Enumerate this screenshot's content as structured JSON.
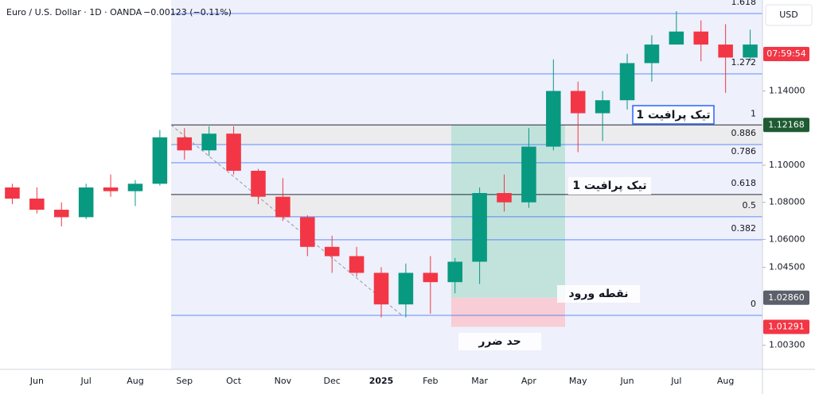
{
  "chart_data": {
    "type": "candlestick",
    "title": "Euro / U.S. Dollar · 1D · OANDA",
    "change": "−0.00123 (−0.11%)",
    "currency": "USD",
    "categories": [
      null,
      "Jun",
      null,
      "Jul",
      null,
      "Aug",
      null,
      "Sep",
      null,
      "Oct",
      null,
      "Nov",
      null,
      "Dec",
      null,
      "2025",
      null,
      "Feb",
      null,
      "Mar",
      null,
      "Apr",
      null,
      "May",
      null,
      "Jun",
      null,
      "Jul",
      null,
      "Aug",
      null
    ],
    "open": [
      1.088,
      1.082,
      1.076,
      1.072,
      1.088,
      1.086,
      1.09,
      1.115,
      1.108,
      1.117,
      1.097,
      1.083,
      1.072,
      1.056,
      1.051,
      1.042,
      1.025,
      1.042,
      1.037,
      1.048,
      1.085,
      1.08,
      1.11,
      1.14,
      1.128,
      1.135,
      1.155,
      1.165,
      1.172,
      1.165,
      1.158
    ],
    "high": [
      1.09,
      1.088,
      1.08,
      1.09,
      1.095,
      1.092,
      1.119,
      1.12,
      1.121,
      1.121,
      1.098,
      1.093,
      1.073,
      1.062,
      1.056,
      1.045,
      1.047,
      1.051,
      1.05,
      1.088,
      1.095,
      1.12,
      1.157,
      1.145,
      1.14,
      1.16,
      1.17,
      1.183,
      1.178,
      1.176,
      1.173
    ],
    "low": [
      1.079,
      1.074,
      1.067,
      1.071,
      1.083,
      1.078,
      1.089,
      1.103,
      1.105,
      1.095,
      1.079,
      1.07,
      1.051,
      1.042,
      1.04,
      1.018,
      1.018,
      1.02,
      1.031,
      1.036,
      1.075,
      1.077,
      1.108,
      1.107,
      1.113,
      1.13,
      1.145,
      1.165,
      1.156,
      1.139,
      1.156
    ],
    "close": [
      1.082,
      1.076,
      1.072,
      1.088,
      1.086,
      1.09,
      1.115,
      1.108,
      1.117,
      1.097,
      1.083,
      1.072,
      1.056,
      1.051,
      1.042,
      1.025,
      1.042,
      1.037,
      1.048,
      1.085,
      1.08,
      1.11,
      1.14,
      1.128,
      1.135,
      1.155,
      1.165,
      1.172,
      1.165,
      1.158,
      1.165
    ],
    "up_color": "#089981",
    "down_color": "#f23645",
    "ylim": [
      0.99,
      1.189
    ],
    "yticks": [
      {
        "value": 1.14,
        "label": "1.14000"
      },
      {
        "value": 1.1,
        "label": "1.10000"
      },
      {
        "value": 1.08,
        "label": "1.08000"
      },
      {
        "value": 1.06,
        "label": "1.06000"
      },
      {
        "value": 1.045,
        "label": "1.04500"
      },
      {
        "value": 1.003,
        "label": "1.00300"
      }
    ],
    "fib_levels": [
      {
        "level": 1.618,
        "price": 1.1817,
        "color": "#2962ff"
      },
      {
        "level": 1.272,
        "price": 1.1492,
        "color": "#2962ff"
      },
      {
        "level": 1,
        "price": 1.1217,
        "color": "#131722"
      },
      {
        "level": 0.886,
        "price": 1.1111,
        "color": "#2962ff"
      },
      {
        "level": 0.786,
        "price": 1.1013,
        "color": "#2962ff"
      },
      {
        "level": 0.618,
        "price": 1.0842,
        "color": "#131722"
      },
      {
        "level": 0.5,
        "price": 1.0722,
        "color": "#2962ff"
      },
      {
        "level": 0.382,
        "price": 1.0598,
        "color": "#2962ff"
      },
      {
        "level": 0,
        "price": 1.0191,
        "color": "#2962ff"
      }
    ],
    "position": {
      "entry": 1.0286,
      "take_profit": 1.12168,
      "stop_loss": 1.01291
    },
    "price_tags": [
      {
        "value": 1.12168,
        "label": "1.12168",
        "color": "#1e5b32"
      },
      {
        "value": 1.0286,
        "label": "1.02860",
        "color": "#5d606b"
      },
      {
        "value": 1.01291,
        "label": "1.01291",
        "color": "#f23645"
      }
    ],
    "countdown": {
      "label": "07:59:54",
      "color": "#f23645"
    },
    "annotations": [
      "تیک پرافیت 1",
      "تیک پرافیت 1",
      "نقطه ورود",
      "حد ضرر"
    ]
  }
}
